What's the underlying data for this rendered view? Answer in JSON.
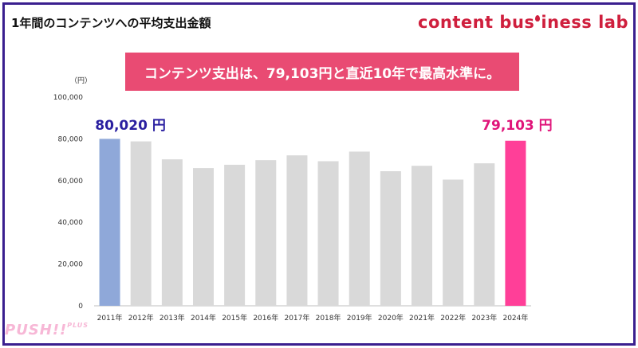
{
  "header": {
    "title": "1年間のコンテンツへの平均支出金額",
    "brand_prefix": "content bus",
    "brand_suffix": "iness lab"
  },
  "banner": {
    "text": "コンテンツ支出は、79,103円と直近10年で最高水準に。"
  },
  "unit_label": "（円）",
  "watermark": {
    "main": "PUSH!!",
    "sup": "PLUS"
  },
  "colors": {
    "highlight_first": "#8fa8d9",
    "highlight_last": "#ff3f98",
    "bar_default": "#d9d9d9",
    "label_first": "#2a1fa0",
    "label_last": "#e0157a"
  },
  "chart_data": {
    "type": "bar",
    "title": "1年間のコンテンツへの平均支出金額",
    "xlabel": "",
    "ylabel": "（円）",
    "categories": [
      "2011年",
      "2012年",
      "2013年",
      "2014年",
      "2015年",
      "2016年",
      "2017年",
      "2018年",
      "2019年",
      "2020年",
      "2021年",
      "2022年",
      "2023年",
      "2024年"
    ],
    "values": [
      80020,
      78800,
      70200,
      66000,
      67600,
      69800,
      72100,
      69300,
      73900,
      64500,
      67100,
      60500,
      68300,
      79103
    ],
    "ylim": [
      0,
      100000
    ],
    "yticks": [
      "0",
      "20,000",
      "40,000",
      "60,000",
      "80,000",
      "100,000"
    ],
    "ytick_values": [
      0,
      20000,
      40000,
      60000,
      80000,
      100000
    ],
    "annotations": [
      {
        "category": "2011年",
        "text": "80,020 円"
      },
      {
        "category": "2024年",
        "text": "79,103 円"
      }
    ],
    "grid": false
  }
}
